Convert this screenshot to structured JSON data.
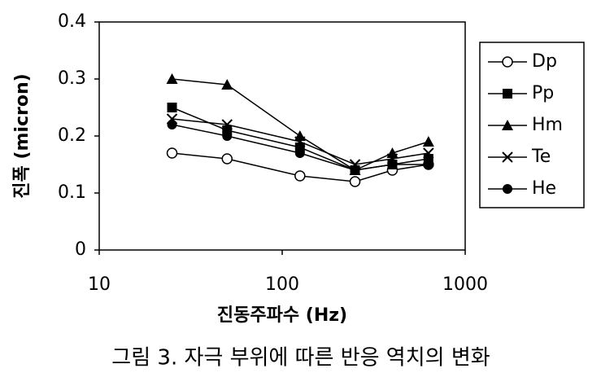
{
  "chart_data": {
    "type": "line",
    "y_label": "진폭 (micron)",
    "x_label": "진동주파수 (Hz)",
    "caption": "그림 3.   자극 부위에 따른 반응 역치의 변화",
    "x": [
      25,
      50,
      125,
      250,
      400,
      630
    ],
    "series": [
      {
        "name": "Dp",
        "color": "#000000",
        "marker": "open-circle",
        "values": [
          0.17,
          0.16,
          0.13,
          0.12,
          0.14,
          0.15
        ]
      },
      {
        "name": "Pp",
        "color": "#000000",
        "marker": "square",
        "values": [
          0.25,
          0.21,
          0.18,
          0.14,
          0.15,
          0.16
        ]
      },
      {
        "name": "Hm",
        "color": "#000000",
        "marker": "triangle",
        "values": [
          0.3,
          0.29,
          0.2,
          0.14,
          0.17,
          0.19
        ]
      },
      {
        "name": "Te",
        "color": "#000000",
        "marker": "cross",
        "values": [
          0.23,
          0.22,
          0.19,
          0.15,
          0.16,
          0.17
        ]
      },
      {
        "name": "He",
        "color": "#000000",
        "marker": "circle",
        "values": [
          0.22,
          0.2,
          0.17,
          0.14,
          0.15,
          0.15
        ]
      }
    ],
    "xscale": "log",
    "xlim": [
      10,
      1000
    ],
    "xticks": [
      10,
      100,
      1000
    ],
    "ylim": [
      0,
      0.4
    ],
    "yticks": [
      0,
      0.1,
      0.2,
      0.3,
      0.4
    ],
    "grid": false,
    "legend": "right"
  }
}
